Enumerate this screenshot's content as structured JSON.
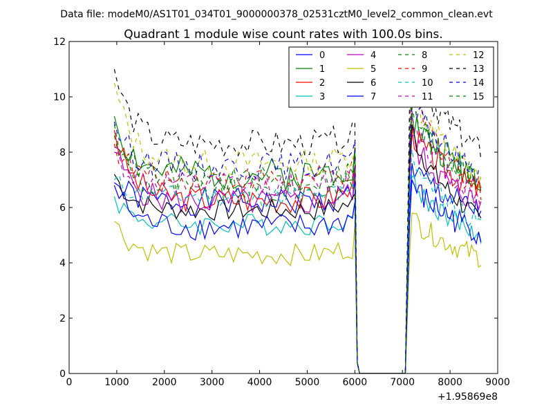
{
  "chart_data": {
    "type": "line",
    "suptitle": "Data file: modeM0/AS1T01_034T01_9000000378_02531cztM0_level2_common_clean.evt",
    "title": "Quadrant 1 module wise count rates with 100.0s bins.",
    "xlabel": "",
    "ylabel": "",
    "x_offset_label": "+1.95869e8",
    "xlim": [
      0,
      9000
    ],
    "ylim": [
      0,
      12
    ],
    "x_ticks": [
      0,
      1000,
      2000,
      3000,
      4000,
      5000,
      6000,
      7000,
      8000,
      9000
    ],
    "y_ticks": [
      0,
      2,
      4,
      6,
      8,
      10,
      12
    ],
    "grid": false,
    "legend_position": "top-right",
    "gap_x": [
      6100,
      6200,
      6300,
      6400,
      6500,
      6600,
      6700,
      6800,
      6900,
      7000
    ],
    "series": [
      {
        "name": "0",
        "color": "#0000ff",
        "dash": "solid",
        "first": 6.9,
        "mean": 6.2,
        "amp": 0.5,
        "last": 5.8,
        "post_start": 7.6,
        "post_end": 5.8,
        "seed": 1
      },
      {
        "name": "1",
        "color": "#008000",
        "dash": "solid",
        "first": 9.3,
        "mean": 7.2,
        "amp": 0.6,
        "last": 7.0,
        "post_start": 9.4,
        "post_end": 7.1,
        "seed": 2
      },
      {
        "name": "2",
        "color": "#ff0000",
        "dash": "solid",
        "first": 8.8,
        "mean": 6.3,
        "amp": 0.5,
        "last": 6.3,
        "post_start": 8.9,
        "post_end": 6.6,
        "seed": 3
      },
      {
        "name": "3",
        "color": "#00bfbf",
        "dash": "solid",
        "first": 6.4,
        "mean": 5.4,
        "amp": 0.4,
        "last": 5.0,
        "post_start": 7.1,
        "post_end": 5.0,
        "seed": 4
      },
      {
        "name": "4",
        "color": "#bf00bf",
        "dash": "solid",
        "first": 8.2,
        "mean": 6.2,
        "amp": 0.5,
        "last": 6.2,
        "post_start": 8.6,
        "post_end": 6.1,
        "seed": 5
      },
      {
        "name": "5",
        "color": "#bfbf00",
        "dash": "solid",
        "first": 5.5,
        "mean": 4.3,
        "amp": 0.4,
        "last": 4.2,
        "post_start": 5.8,
        "post_end": 4.2,
        "seed": 6
      },
      {
        "name": "6",
        "color": "#000000",
        "dash": "solid",
        "first": 7.2,
        "mean": 5.9,
        "amp": 0.4,
        "last": 5.3,
        "post_start": 9.0,
        "post_end": 5.5,
        "seed": 7
      },
      {
        "name": "7",
        "color": "#0000ff",
        "dash": "solid",
        "first": 6.8,
        "mean": 5.3,
        "amp": 0.5,
        "last": 5.0,
        "post_start": 7.0,
        "post_end": 5.1,
        "seed": 8
      },
      {
        "name": "8",
        "color": "#008000",
        "dash": "dash",
        "first": 8.6,
        "mean": 6.6,
        "amp": 0.5,
        "last": 6.9,
        "post_start": 9.6,
        "post_end": 6.9,
        "seed": 9
      },
      {
        "name": "9",
        "color": "#ff0000",
        "dash": "dash",
        "first": 8.3,
        "mean": 7.0,
        "amp": 0.5,
        "last": 6.5,
        "post_start": 10.5,
        "post_end": 6.6,
        "seed": 10
      },
      {
        "name": "10",
        "color": "#00bfbf",
        "dash": "dash",
        "first": 7.0,
        "mean": 6.4,
        "amp": 0.4,
        "last": 5.4,
        "post_start": 8.1,
        "post_end": 5.4,
        "seed": 11
      },
      {
        "name": "11",
        "color": "#bf00bf",
        "dash": "dash",
        "first": 8.0,
        "mean": 6.8,
        "amp": 0.5,
        "last": 6.2,
        "post_start": 9.5,
        "post_end": 6.3,
        "seed": 12
      },
      {
        "name": "12",
        "color": "#bfbf00",
        "dash": "dash",
        "first": 10.5,
        "mean": 7.6,
        "amp": 0.5,
        "last": 7.0,
        "post_start": 10.5,
        "post_end": 7.0,
        "seed": 13
      },
      {
        "name": "13",
        "color": "#000000",
        "dash": "dash",
        "first": 11.0,
        "mean": 8.3,
        "amp": 0.5,
        "last": 7.9,
        "post_start": 11.4,
        "post_end": 8.0,
        "seed": 14
      },
      {
        "name": "14",
        "color": "#0000ff",
        "dash": "dash",
        "first": 9.1,
        "mean": 7.5,
        "amp": 0.5,
        "last": 7.2,
        "post_start": 10.0,
        "post_end": 7.2,
        "seed": 15
      },
      {
        "name": "15",
        "color": "#008000",
        "dash": "dash",
        "first": 9.0,
        "mean": 7.0,
        "amp": 0.5,
        "last": 6.8,
        "post_start": 9.8,
        "post_end": 6.9,
        "seed": 16
      }
    ]
  }
}
